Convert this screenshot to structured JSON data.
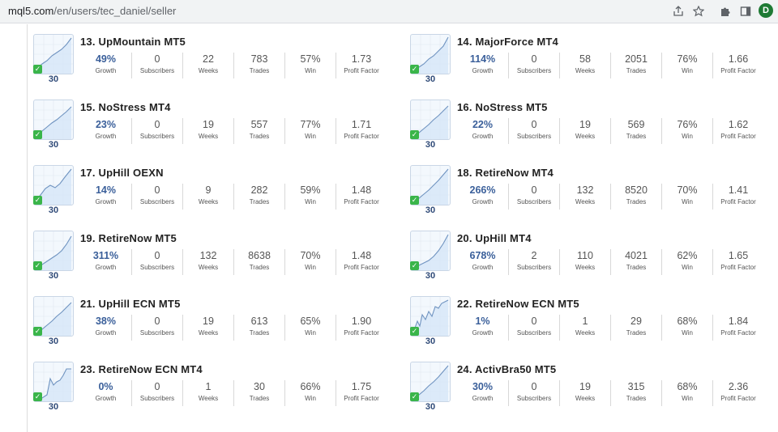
{
  "browser": {
    "url_host": "mql5.com",
    "url_path": "/en/users/tec_daniel/seller",
    "profile_initial": "D"
  },
  "stat_labels": {
    "growth": "Growth",
    "subscribers": "Subscribers",
    "weeks": "Weeks",
    "trades": "Trades",
    "win": "Win",
    "profit_factor": "Profit Factor"
  },
  "signals": [
    {
      "title": "13. UpMountain MT5",
      "days": "30",
      "growth": "49%",
      "subscribers": "0",
      "weeks": "22",
      "trades": "783",
      "win": "57%",
      "profit_factor": "1.73"
    },
    {
      "title": "14. MajorForce MT4",
      "days": "30",
      "growth": "114%",
      "subscribers": "0",
      "weeks": "58",
      "trades": "2051",
      "win": "76%",
      "profit_factor": "1.66"
    },
    {
      "title": "15. NoStress MT4",
      "days": "30",
      "growth": "23%",
      "subscribers": "0",
      "weeks": "19",
      "trades": "557",
      "win": "77%",
      "profit_factor": "1.71"
    },
    {
      "title": "16. NoStress MT5",
      "days": "30",
      "growth": "22%",
      "subscribers": "0",
      "weeks": "19",
      "trades": "569",
      "win": "76%",
      "profit_factor": "1.62"
    },
    {
      "title": "17. UpHill OEXN",
      "days": "30",
      "growth": "14%",
      "subscribers": "0",
      "weeks": "9",
      "trades": "282",
      "win": "59%",
      "profit_factor": "1.48"
    },
    {
      "title": "18. RetireNow MT4",
      "days": "30",
      "growth": "266%",
      "subscribers": "0",
      "weeks": "132",
      "trades": "8520",
      "win": "70%",
      "profit_factor": "1.41"
    },
    {
      "title": "19. RetireNow MT5",
      "days": "30",
      "growth": "311%",
      "subscribers": "0",
      "weeks": "132",
      "trades": "8638",
      "win": "70%",
      "profit_factor": "1.48"
    },
    {
      "title": "20. UpHill MT4",
      "days": "30",
      "growth": "678%",
      "subscribers": "2",
      "weeks": "110",
      "trades": "4021",
      "win": "62%",
      "profit_factor": "1.65"
    },
    {
      "title": "21. UpHill ECN MT5",
      "days": "30",
      "growth": "38%",
      "subscribers": "0",
      "weeks": "19",
      "trades": "613",
      "win": "65%",
      "profit_factor": "1.90"
    },
    {
      "title": "22. RetireNow ECN MT5",
      "days": "30",
      "growth": "1%",
      "subscribers": "0",
      "weeks": "1",
      "trades": "29",
      "win": "68%",
      "profit_factor": "1.84"
    },
    {
      "title": "23. RetireNow ECN MT4",
      "days": "30",
      "growth": "0%",
      "subscribers": "0",
      "weeks": "1",
      "trades": "30",
      "win": "66%",
      "profit_factor": "1.75"
    },
    {
      "title": "24. ActivBra50 MT5",
      "days": "30",
      "growth": "30%",
      "subscribers": "0",
      "weeks": "19",
      "trades": "315",
      "win": "68%",
      "profit_factor": "2.36"
    }
  ],
  "colors": {
    "growth_value": "#3a5f9a",
    "thumb_line": "#6f93c0",
    "thumb_fill": "#d6e6f7",
    "check_green": "#3ab54a"
  }
}
